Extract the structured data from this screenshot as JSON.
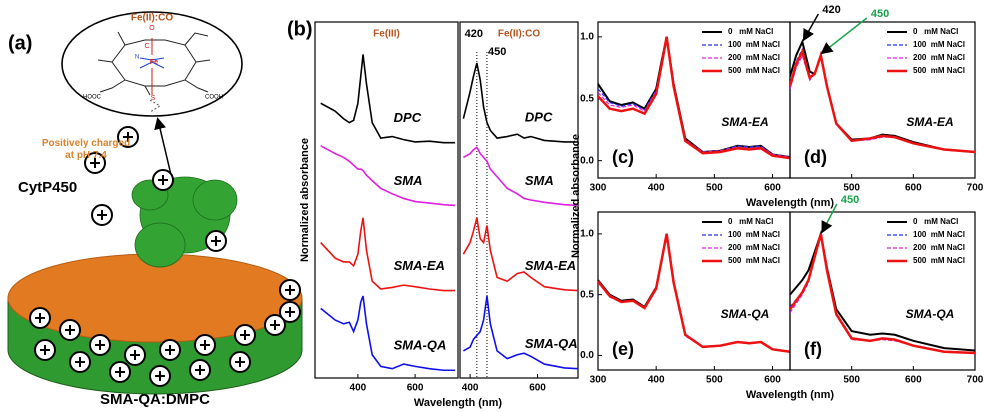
{
  "illustration": {
    "panel_label": "(a)",
    "heme_label": "Fe(II):CO",
    "charge_note": "Positively charged at pH 7.4",
    "protein": "CytP450",
    "nanodisc": "SMA-QA:DMPC",
    "atoms": {
      "iron": "Fe",
      "nitrogen": "N",
      "sulfur": "S",
      "carbon": "C",
      "oxygen": "O",
      "acid_left": "HOOC",
      "acid_right": "COOH"
    }
  },
  "chart_data": [
    {
      "type": "line",
      "panel_label": "(b)",
      "title": "Fe(III)",
      "xlabel": "Wavelength (nm)",
      "ylabel": "Normalized absorbance",
      "xlim": [
        250,
        750
      ],
      "ylim": [
        0,
        4.6
      ],
      "xticks": [
        400,
        600
      ],
      "x": [
        270,
        320,
        350,
        370,
        385,
        400,
        410,
        418,
        430,
        450,
        480,
        520,
        560,
        600,
        650,
        700,
        740
      ],
      "series": [
        {
          "name": "DPC",
          "color": "#000000",
          "values": [
            3.55,
            3.45,
            3.35,
            3.3,
            3.33,
            3.55,
            3.9,
            4.18,
            3.8,
            3.3,
            3.1,
            3.12,
            3.08,
            3.05,
            3.06,
            3.04,
            3.04
          ]
        },
        {
          "name": "SMA",
          "color": "#e020e0",
          "values": [
            3.0,
            2.9,
            2.85,
            2.8,
            2.75,
            2.7,
            2.7,
            2.68,
            2.62,
            2.55,
            2.45,
            2.38,
            2.32,
            2.28,
            2.26,
            2.24,
            2.23
          ]
        },
        {
          "name": "SMA-EA",
          "color": "#ee1111",
          "values": [
            1.75,
            1.55,
            1.5,
            1.5,
            1.45,
            1.6,
            1.9,
            2.07,
            1.65,
            1.25,
            1.15,
            1.17,
            1.2,
            1.18,
            1.15,
            1.13,
            1.13
          ]
        },
        {
          "name": "SMA-QA",
          "color": "#1010ee",
          "values": [
            0.9,
            0.75,
            0.7,
            0.72,
            0.6,
            0.75,
            0.98,
            1.06,
            0.7,
            0.3,
            0.15,
            0.12,
            0.18,
            0.15,
            0.12,
            0.1,
            0.1
          ]
        }
      ]
    },
    {
      "type": "line",
      "title": "Fe(II):CO",
      "xlim": [
        370,
        720
      ],
      "ylim": [
        0,
        4.6
      ],
      "xticks": [
        400,
        600
      ],
      "x": [
        380,
        400,
        410,
        420,
        430,
        440,
        450,
        460,
        480,
        510,
        540,
        560,
        580,
        620,
        680,
        720
      ],
      "vlines": [
        {
          "x": 420,
          "label": "420"
        },
        {
          "x": 450,
          "label": "450"
        }
      ],
      "series": [
        {
          "name": "DPC",
          "color": "#000000",
          "values": [
            3.35,
            3.7,
            3.9,
            4.07,
            3.85,
            3.5,
            3.3,
            3.2,
            3.1,
            3.12,
            3.15,
            3.1,
            3.12,
            3.07,
            3.05,
            3.05
          ]
        },
        {
          "name": "SMA",
          "color": "#e020e0",
          "values": [
            2.85,
            2.9,
            2.95,
            2.98,
            2.9,
            2.85,
            2.8,
            2.7,
            2.6,
            2.45,
            2.38,
            2.32,
            2.3,
            2.27,
            2.24,
            2.23
          ]
        },
        {
          "name": "SMA-EA",
          "color": "#ee1111",
          "values": [
            1.6,
            1.75,
            1.9,
            2.07,
            1.8,
            1.75,
            1.97,
            1.65,
            1.3,
            1.25,
            1.35,
            1.37,
            1.3,
            1.18,
            1.14,
            1.13
          ]
        },
        {
          "name": "SMA-QA",
          "color": "#1010ee",
          "values": [
            0.35,
            0.4,
            0.5,
            0.55,
            0.6,
            0.75,
            1.06,
            0.7,
            0.35,
            0.25,
            0.3,
            0.32,
            0.28,
            0.18,
            0.13,
            0.12
          ]
        }
      ]
    },
    {
      "type": "line",
      "panel_label": "(c)",
      "sample": "SMA-EA",
      "xlabel": "Wavelength (nm)",
      "ylabel": "Normalized absorbance",
      "legend": "upper right",
      "xlim": [
        300,
        630
      ],
      "ylim": [
        -0.14,
        1.12
      ],
      "xticks": [
        300,
        400,
        500,
        600
      ],
      "yticks": [
        {
          "value": 0,
          "label": "0.0"
        },
        {
          "value": 0.5,
          "label": "0.5"
        },
        {
          "value": 1,
          "label": "1.0"
        }
      ],
      "x": [
        300,
        320,
        340,
        360,
        380,
        400,
        410,
        418,
        430,
        450,
        480,
        510,
        540,
        560,
        580,
        600,
        630
      ],
      "series": [
        {
          "name": "0   mM NaCl",
          "color": "#000000",
          "linewidth": 2,
          "values": [
            0.62,
            0.48,
            0.45,
            0.47,
            0.42,
            0.58,
            0.82,
            1.0,
            0.62,
            0.18,
            0.07,
            0.08,
            0.12,
            0.11,
            0.12,
            0.05,
            0.03
          ]
        },
        {
          "name": "100  mM NaCl",
          "color": "#2233ee",
          "linewidth": 1.2,
          "linestyle": "dashed",
          "values": [
            0.58,
            0.47,
            0.44,
            0.46,
            0.41,
            0.57,
            0.81,
            1.0,
            0.61,
            0.17,
            0.07,
            0.08,
            0.12,
            0.11,
            0.12,
            0.05,
            0.03
          ]
        },
        {
          "name": "200  mM NaCl",
          "color": "#e020e0",
          "linewidth": 1.2,
          "linestyle": "dashed",
          "values": [
            0.55,
            0.45,
            0.43,
            0.45,
            0.4,
            0.56,
            0.8,
            1.0,
            0.6,
            0.17,
            0.07,
            0.08,
            0.11,
            0.1,
            0.11,
            0.05,
            0.03
          ]
        },
        {
          "name": "500  mM NaCl",
          "color": "#ee1111",
          "linewidth": 2.5,
          "values": [
            0.52,
            0.42,
            0.4,
            0.42,
            0.38,
            0.54,
            0.79,
            1.0,
            0.6,
            0.16,
            0.06,
            0.07,
            0.1,
            0.09,
            0.1,
            0.04,
            0.02
          ]
        }
      ]
    },
    {
      "type": "line",
      "panel_label": "(d)",
      "sample": "SMA-EA",
      "legend": "upper right",
      "xlim": [
        400,
        700
      ],
      "ylim": [
        -0.14,
        1.12
      ],
      "xticks": [
        500,
        600,
        700
      ],
      "x": [
        400,
        410,
        420,
        432,
        440,
        450,
        460,
        475,
        500,
        530,
        550,
        570,
        600,
        650,
        700
      ],
      "annotations": [
        {
          "x": 420,
          "y": 0.96,
          "label": "420",
          "color": "#000000"
        },
        {
          "x": 450,
          "y": 0.85,
          "label": "450",
          "color": "#1aa34a"
        }
      ],
      "series": [
        {
          "name": "0   mM NaCl",
          "color": "#000000",
          "linewidth": 2,
          "values": [
            0.68,
            0.85,
            0.96,
            0.72,
            0.7,
            0.85,
            0.6,
            0.3,
            0.17,
            0.18,
            0.21,
            0.2,
            0.15,
            0.09,
            0.07
          ]
        },
        {
          "name": "100  mM NaCl",
          "color": "#2233ee",
          "linewidth": 1.2,
          "linestyle": "dashed",
          "values": [
            0.62,
            0.8,
            0.9,
            0.68,
            0.7,
            0.85,
            0.6,
            0.3,
            0.16,
            0.17,
            0.2,
            0.19,
            0.14,
            0.09,
            0.07
          ]
        },
        {
          "name": "200  mM NaCl",
          "color": "#e020e0",
          "linewidth": 1.2,
          "linestyle": "dashed",
          "values": [
            0.58,
            0.75,
            0.85,
            0.65,
            0.7,
            0.85,
            0.6,
            0.29,
            0.16,
            0.17,
            0.19,
            0.19,
            0.14,
            0.09,
            0.07
          ]
        },
        {
          "name": "500  mM NaCl",
          "color": "#ee1111",
          "linewidth": 2.5,
          "values": [
            0.6,
            0.78,
            0.88,
            0.67,
            0.7,
            0.85,
            0.6,
            0.3,
            0.16,
            0.18,
            0.2,
            0.19,
            0.14,
            0.09,
            0.07
          ]
        }
      ]
    },
    {
      "type": "line",
      "panel_label": "(e)",
      "sample": "SMA-QA",
      "xlabel": "Wavelength (nm)",
      "legend": "upper right",
      "xlim": [
        300,
        630
      ],
      "ylim": [
        -0.12,
        1.18
      ],
      "xticks": [
        300,
        400,
        500,
        600
      ],
      "yticks": [
        {
          "value": 0,
          "label": "0.0"
        },
        {
          "value": 0.5,
          "label": "0.5"
        },
        {
          "value": 1,
          "label": "1.0"
        }
      ],
      "x": [
        300,
        320,
        340,
        360,
        380,
        400,
        410,
        418,
        430,
        450,
        480,
        510,
        540,
        560,
        580,
        600,
        630
      ],
      "series": [
        {
          "name": "0   mM NaCl",
          "color": "#000000",
          "linewidth": 2,
          "values": [
            0.62,
            0.5,
            0.45,
            0.46,
            0.4,
            0.56,
            0.8,
            1.0,
            0.6,
            0.17,
            0.07,
            0.08,
            0.11,
            0.1,
            0.11,
            0.05,
            0.03
          ]
        },
        {
          "name": "100  mM NaCl",
          "color": "#2233ee",
          "linewidth": 1.2,
          "linestyle": "dashed",
          "values": [
            0.6,
            0.49,
            0.44,
            0.45,
            0.4,
            0.55,
            0.8,
            1.0,
            0.6,
            0.17,
            0.07,
            0.08,
            0.11,
            0.1,
            0.11,
            0.05,
            0.03
          ]
        },
        {
          "name": "200  mM NaCl",
          "color": "#e020e0",
          "linewidth": 1.2,
          "linestyle": "dashed",
          "values": [
            0.6,
            0.48,
            0.44,
            0.45,
            0.39,
            0.55,
            0.79,
            1.0,
            0.6,
            0.16,
            0.07,
            0.08,
            0.11,
            0.1,
            0.11,
            0.05,
            0.03
          ]
        },
        {
          "name": "500  mM NaCl",
          "color": "#ee1111",
          "linewidth": 2.5,
          "values": [
            0.61,
            0.49,
            0.44,
            0.45,
            0.39,
            0.55,
            0.8,
            1.0,
            0.6,
            0.17,
            0.07,
            0.08,
            0.11,
            0.1,
            0.11,
            0.05,
            0.03
          ]
        }
      ]
    },
    {
      "type": "line",
      "panel_label": "(f)",
      "sample": "SMA-QA",
      "legend": "upper right",
      "xlim": [
        400,
        700
      ],
      "ylim": [
        -0.12,
        1.18
      ],
      "xticks": [
        500,
        600,
        700
      ],
      "x": [
        400,
        420,
        430,
        440,
        450,
        460,
        475,
        500,
        530,
        550,
        570,
        600,
        650,
        700
      ],
      "annotations": [
        {
          "x": 450,
          "y": 1.0,
          "label": "450",
          "color": "#1aa34a"
        }
      ],
      "series": [
        {
          "name": "0   mM NaCl",
          "color": "#000000",
          "linewidth": 2,
          "values": [
            0.5,
            0.62,
            0.7,
            0.85,
            1.0,
            0.72,
            0.38,
            0.2,
            0.17,
            0.18,
            0.17,
            0.12,
            0.06,
            0.04
          ]
        },
        {
          "name": "100  mM NaCl",
          "color": "#2233ee",
          "linewidth": 1.2,
          "linestyle": "dashed",
          "values": [
            0.4,
            0.52,
            0.62,
            0.8,
            1.0,
            0.7,
            0.34,
            0.14,
            0.12,
            0.14,
            0.13,
            0.08,
            0.03,
            0.02
          ]
        },
        {
          "name": "200  mM NaCl",
          "color": "#e020e0",
          "linewidth": 1.2,
          "linestyle": "dashed",
          "values": [
            0.35,
            0.5,
            0.6,
            0.8,
            1.0,
            0.7,
            0.33,
            0.13,
            0.12,
            0.13,
            0.12,
            0.08,
            0.03,
            0.02
          ]
        },
        {
          "name": "500  mM NaCl",
          "color": "#ee1111",
          "linewidth": 2.5,
          "values": [
            0.38,
            0.52,
            0.62,
            0.81,
            1.0,
            0.7,
            0.34,
            0.14,
            0.12,
            0.14,
            0.13,
            0.08,
            0.03,
            0.02
          ]
        }
      ]
    }
  ]
}
